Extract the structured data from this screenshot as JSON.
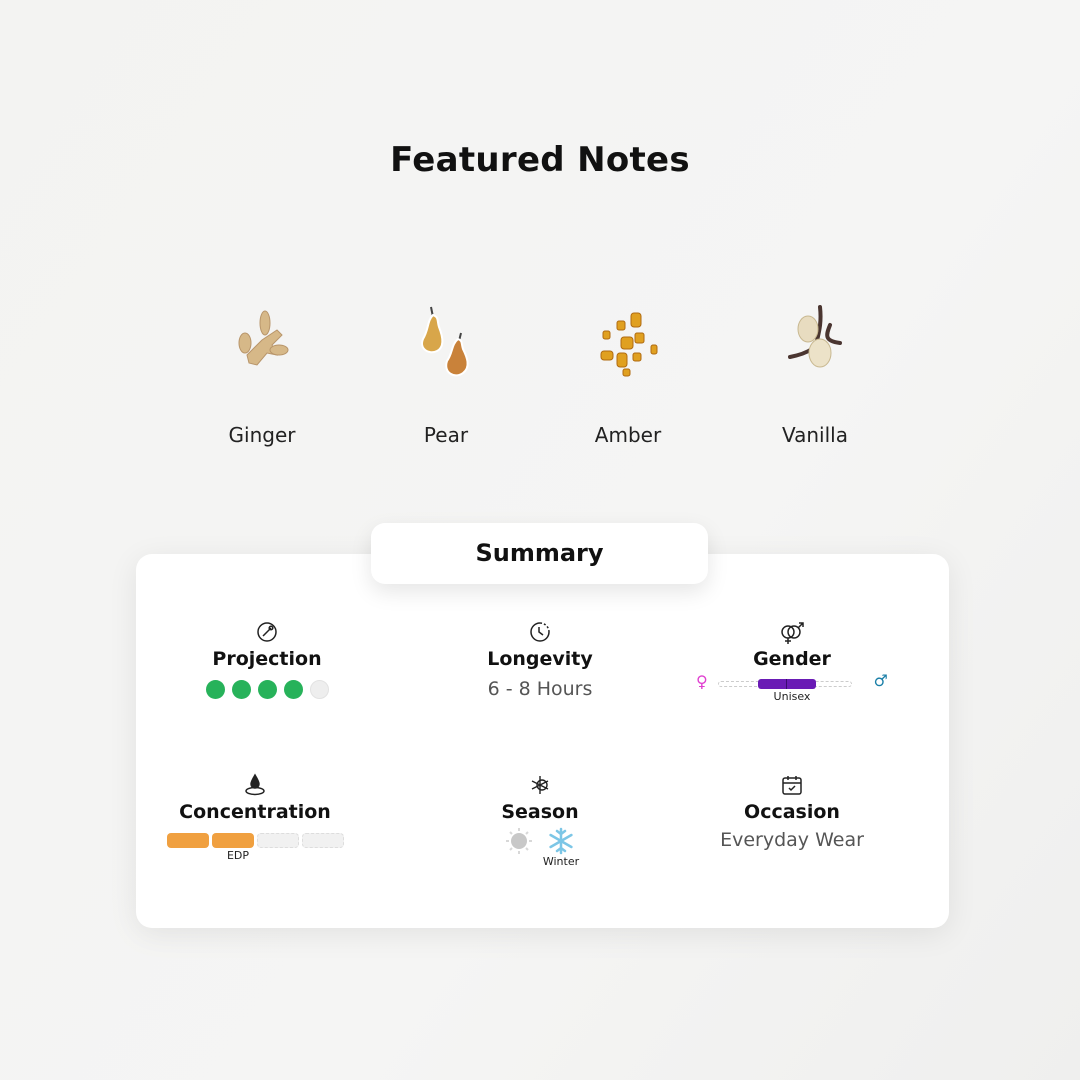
{
  "title": "Featured Notes",
  "notes": [
    {
      "label": "Ginger",
      "icon": "ginger-image"
    },
    {
      "label": "Pear",
      "icon": "pear-image"
    },
    {
      "label": "Amber",
      "icon": "amber-image"
    },
    {
      "label": "Vanilla",
      "icon": "vanilla-image"
    }
  ],
  "summary": {
    "tab_label": "Summary",
    "projection": {
      "label": "Projection",
      "rating": 4,
      "max": 5,
      "color": "#27b25a"
    },
    "longevity": {
      "label": "Longevity",
      "value": "6 - 8 Hours"
    },
    "gender": {
      "label": "Gender",
      "value": "Unisex",
      "color": "#6a1bb5",
      "female_color": "#e040d0",
      "male_color": "#1a7fa8"
    },
    "concentration": {
      "label": "Concentration",
      "value": "EDP",
      "level": 2,
      "max": 4,
      "color": "#f0a040"
    },
    "season": {
      "label": "Season",
      "value": "Winter"
    },
    "occasion": {
      "label": "Occasion",
      "value": "Everyday Wear"
    }
  }
}
